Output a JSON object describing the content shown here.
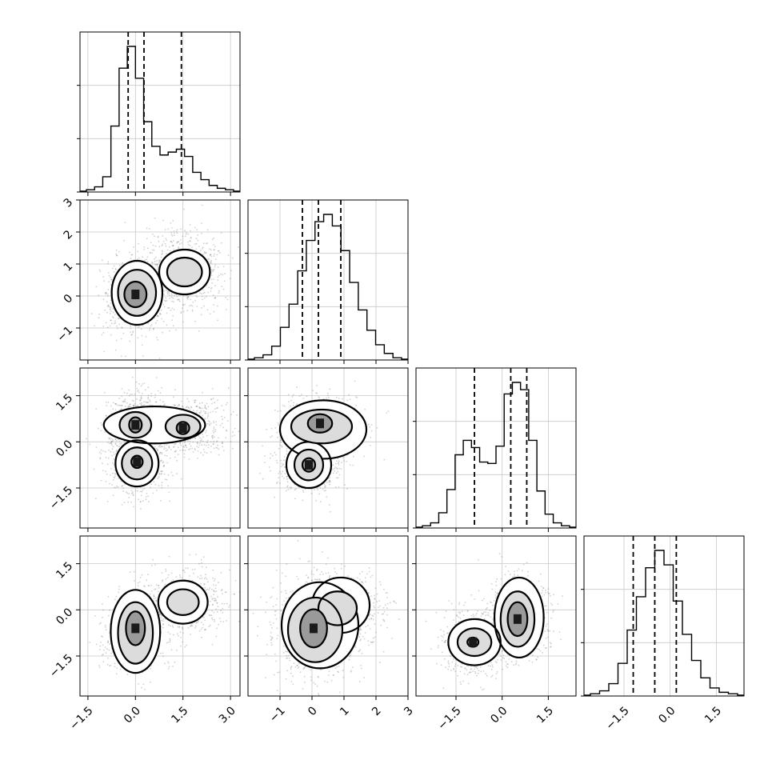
{
  "chart_data": {
    "type": "corner",
    "grid": true,
    "parameters": [
      {
        "ticks": [
          -1.5,
          0.0,
          1.5,
          3.0
        ],
        "tick_labels": [
          "−1.5",
          "0.0",
          "1.5",
          "3.0"
        ],
        "range": [
          -1.75,
          3.3
        ],
        "quantile_lines": [
          -0.23,
          0.27,
          1.45
        ],
        "histogram": [
          1,
          3,
          10,
          45,
          85,
          100,
          78,
          48,
          31,
          25,
          27,
          29,
          24,
          13,
          8,
          4,
          2,
          1
        ]
      },
      {
        "ticks": [
          -1,
          0,
          1,
          2,
          3
        ],
        "tick_labels": [
          "−1",
          "0",
          "1",
          "2",
          "3"
        ],
        "range": [
          -2.0,
          3.0
        ],
        "quantile_lines": [
          -0.3,
          0.2,
          0.9
        ],
        "histogram": [
          1,
          3,
          9,
          22,
          38,
          61,
          82,
          95,
          100,
          92,
          75,
          53,
          34,
          20,
          10,
          4,
          1
        ]
      },
      {
        "ticks": [
          -1.5,
          0.0,
          1.5
        ],
        "tick_labels": [
          "−1.5",
          "0.0",
          "1.5"
        ],
        "range": [
          -2.8,
          2.4
        ],
        "quantile_lines": [
          -0.9,
          0.28,
          0.8
        ],
        "histogram": [
          1,
          3,
          10,
          26,
          50,
          60,
          55,
          45,
          44,
          56,
          92,
          100,
          95,
          60,
          25,
          9,
          3,
          1
        ]
      },
      {
        "ticks": [
          -1.5,
          0.0,
          1.5
        ],
        "tick_labels": [
          "−1.5",
          "0.0",
          "1.5"
        ],
        "range": [
          -2.8,
          2.4
        ],
        "quantile_lines": [
          -1.2,
          -0.5,
          0.2
        ],
        "histogram": [
          1,
          3,
          8,
          22,
          45,
          68,
          88,
          100,
          90,
          65,
          42,
          24,
          12,
          5,
          2,
          1
        ]
      }
    ],
    "pairs": [
      {
        "row": 1,
        "col": 0,
        "points": [
          {
            "x": 0.0,
            "y": 0.0,
            "sx": 0.36,
            "sy": 0.42
          },
          {
            "x": 1.5,
            "y": 0.8,
            "sx": 0.45,
            "sy": 0.45
          }
        ],
        "contours": [
          {
            "level": "outer",
            "blobs": [
              {
                "x": 0.05,
                "y": 0.1,
                "rx": 0.8,
                "ry": 1.0
              },
              {
                "x": 1.55,
                "y": 0.75,
                "rx": 0.8,
                "ry": 0.7
              }
            ]
          },
          {
            "level": "mid",
            "blobs": [
              {
                "x": 0.05,
                "y": 0.1,
                "rx": 0.6,
                "ry": 0.72
              },
              {
                "x": 1.55,
                "y": 0.75,
                "rx": 0.55,
                "ry": 0.45
              }
            ]
          },
          {
            "level": "inner",
            "blobs": [
              {
                "x": 0.0,
                "y": 0.05,
                "rx": 0.35,
                "ry": 0.4
              }
            ]
          }
        ]
      },
      {
        "row": 2,
        "col": 0,
        "points": [
          {
            "x": 0.0,
            "y": 0.55,
            "sx": 0.36,
            "sy": 0.32
          },
          {
            "x": 0.05,
            "y": -0.7,
            "sx": 0.32,
            "sy": 0.35
          },
          {
            "x": 1.5,
            "y": 0.5,
            "sx": 0.48,
            "sy": 0.32
          }
        ],
        "contours": [
          {
            "level": "outer",
            "blobs": [
              {
                "x": 0.6,
                "y": 0.55,
                "rx": 1.6,
                "ry": 0.6
              },
              {
                "x": 0.05,
                "y": -0.7,
                "rx": 0.68,
                "ry": 0.75
              }
            ]
          },
          {
            "level": "mid",
            "blobs": [
              {
                "x": 0.0,
                "y": 0.55,
                "rx": 0.5,
                "ry": 0.42
              },
              {
                "x": 1.5,
                "y": 0.5,
                "rx": 0.55,
                "ry": 0.38
              },
              {
                "x": 0.05,
                "y": -0.7,
                "rx": 0.48,
                "ry": 0.52
              }
            ]
          },
          {
            "level": "inner",
            "blobs": [
              {
                "x": 0.0,
                "y": 0.55,
                "rx": 0.2,
                "ry": 0.25
              },
              {
                "x": 1.5,
                "y": 0.45,
                "rx": 0.2,
                "ry": 0.2
              },
              {
                "x": 0.05,
                "y": -0.65,
                "rx": 0.18,
                "ry": 0.2
              }
            ]
          }
        ]
      },
      {
        "row": 2,
        "col": 1,
        "points": [
          {
            "x": 0.3,
            "y": 0.55,
            "sx": 0.45,
            "sy": 0.32
          },
          {
            "x": -0.1,
            "y": -0.75,
            "sx": 0.35,
            "sy": 0.35
          }
        ],
        "contours": [
          {
            "level": "outer",
            "blobs": [
              {
                "x": 0.35,
                "y": 0.4,
                "rx": 1.35,
                "ry": 0.95
              },
              {
                "x": -0.1,
                "y": -0.75,
                "rx": 0.7,
                "ry": 0.75
              }
            ]
          },
          {
            "level": "mid",
            "blobs": [
              {
                "x": 0.3,
                "y": 0.5,
                "rx": 0.95,
                "ry": 0.55
              },
              {
                "x": -0.1,
                "y": -0.75,
                "rx": 0.45,
                "ry": 0.5
              }
            ]
          },
          {
            "level": "inner",
            "blobs": [
              {
                "x": 0.25,
                "y": 0.6,
                "rx": 0.38,
                "ry": 0.3
              },
              {
                "x": -0.1,
                "y": -0.75,
                "rx": 0.2,
                "ry": 0.22
              }
            ]
          }
        ]
      },
      {
        "row": 3,
        "col": 0,
        "points": [
          {
            "x": 0.0,
            "y": -0.7,
            "sx": 0.35,
            "sy": 0.45
          },
          {
            "x": 1.5,
            "y": 0.25,
            "sx": 0.45,
            "sy": 0.35
          }
        ],
        "contours": [
          {
            "level": "outer",
            "blobs": [
              {
                "x": 0.0,
                "y": -0.7,
                "rx": 0.78,
                "ry": 1.35
              },
              {
                "x": 1.5,
                "y": 0.25,
                "rx": 0.78,
                "ry": 0.7
              }
            ]
          },
          {
            "level": "mid",
            "blobs": [
              {
                "x": 0.0,
                "y": -0.75,
                "rx": 0.55,
                "ry": 1.0
              },
              {
                "x": 1.5,
                "y": 0.25,
                "rx": 0.5,
                "ry": 0.42
              }
            ]
          },
          {
            "level": "inner",
            "blobs": [
              {
                "x": 0.0,
                "y": -0.6,
                "rx": 0.3,
                "ry": 0.55
              }
            ]
          }
        ]
      },
      {
        "row": 3,
        "col": 1,
        "points": [
          {
            "x": 0.1,
            "y": -0.65,
            "sx": 0.5,
            "sy": 0.6
          },
          {
            "x": 0.9,
            "y": 0.1,
            "sx": 0.45,
            "sy": 0.4
          }
        ],
        "contours": [
          {
            "level": "outer",
            "blobs": [
              {
                "x": 0.25,
                "y": -0.5,
                "rx": 1.2,
                "ry": 1.4
              },
              {
                "x": 0.9,
                "y": 0.15,
                "rx": 0.9,
                "ry": 0.9
              }
            ]
          },
          {
            "level": "mid",
            "blobs": [
              {
                "x": 0.1,
                "y": -0.65,
                "rx": 0.85,
                "ry": 1.05
              },
              {
                "x": 0.8,
                "y": 0.05,
                "rx": 0.6,
                "ry": 0.55
              }
            ]
          },
          {
            "level": "inner",
            "blobs": [
              {
                "x": 0.05,
                "y": -0.6,
                "rx": 0.42,
                "ry": 0.62
              }
            ]
          }
        ]
      },
      {
        "row": 3,
        "col": 2,
        "points": [
          {
            "x": 0.5,
            "y": -0.25,
            "sx": 0.35,
            "sy": 0.48
          },
          {
            "x": -0.9,
            "y": -1.05,
            "sx": 0.35,
            "sy": 0.35
          }
        ],
        "contours": [
          {
            "level": "outer",
            "blobs": [
              {
                "x": 0.55,
                "y": -0.25,
                "rx": 0.8,
                "ry": 1.3
              },
              {
                "x": -0.9,
                "y": -1.05,
                "rx": 0.85,
                "ry": 0.75
              }
            ]
          },
          {
            "level": "mid",
            "blobs": [
              {
                "x": 0.5,
                "y": -0.3,
                "rx": 0.55,
                "ry": 0.9
              },
              {
                "x": -0.9,
                "y": -1.05,
                "rx": 0.55,
                "ry": 0.45
              }
            ]
          },
          {
            "level": "inner",
            "blobs": [
              {
                "x": 0.5,
                "y": -0.3,
                "rx": 0.32,
                "ry": 0.55
              },
              {
                "x": -0.95,
                "y": -1.05,
                "rx": 0.18,
                "ry": 0.15
              }
            ]
          }
        ]
      }
    ]
  }
}
